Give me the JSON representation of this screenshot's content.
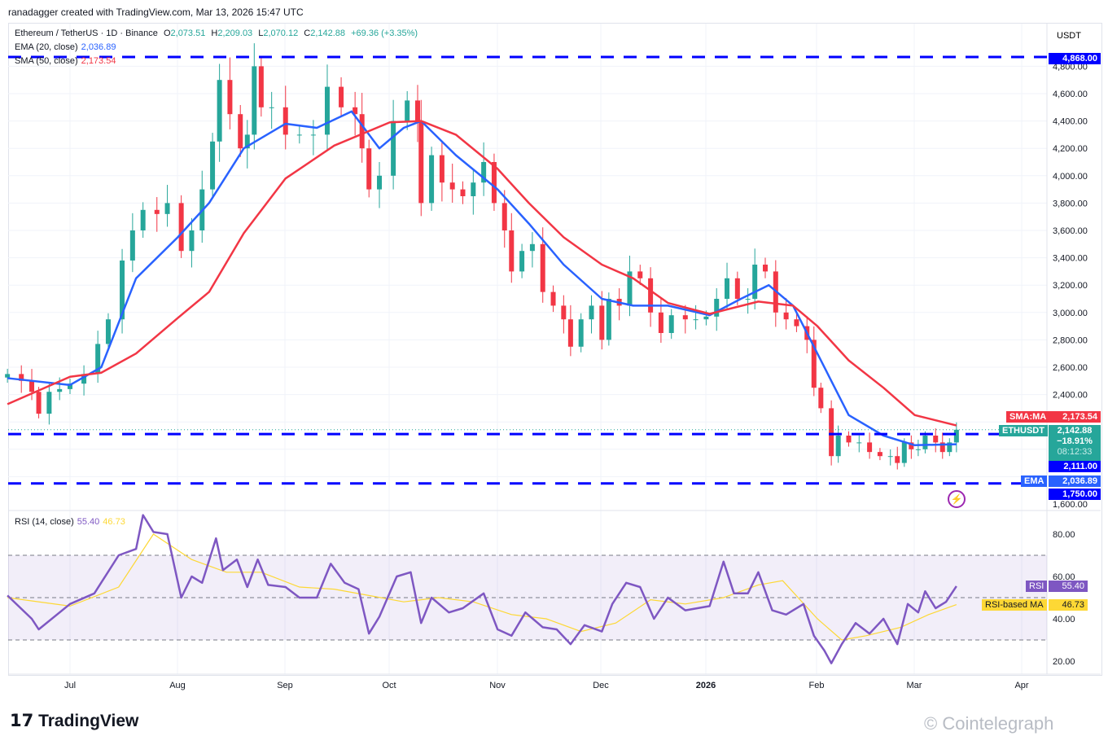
{
  "header": "ranadagger created with TradingView.com, Mar 13, 2026 15:47 UTC",
  "legend": {
    "symbol": "Ethereum / TetherUS · 1D · Binance",
    "o": "O",
    "o_val": "2,073.51",
    "h": "H",
    "h_val": "2,209.03",
    "l": "L",
    "l_val": "2,070.12",
    "c": "C",
    "c_val": "2,142.88",
    "change": "+69.36 (+3.35%)",
    "ema": "EMA (20, close)",
    "ema_val": "2,036.89",
    "sma": "SMA (50, close)",
    "sma_val": "2,173.54",
    "rsi": "RSI (14, close)",
    "rsi_val": "55.40",
    "rsi_ma_val": "46.73"
  },
  "currency": "USDT",
  "tags": {
    "sma_label": "SMA:MA",
    "sma_val": "2,173.54",
    "sym_label": "ETHUSDT",
    "price": "2,142.88",
    "pct": "−18.91%",
    "timer": "08:12:33",
    "lvl1": "2,111.00",
    "ema_label": "EMA",
    "ema_val": "2,036.89",
    "lvl2": "1,750.00",
    "lvl_top": "4,868.00",
    "rsi_label": "RSI",
    "rsi_val": "55.40",
    "rsi_ma_label": "RSI-based MA",
    "rsi_ma_val": "46.73"
  },
  "colors": {
    "up": "#26a69a",
    "down": "#f23645",
    "ema": "#2962ff",
    "sma": "#f23645",
    "level": "#0000ff",
    "rsi": "#7e57c2",
    "rsi_ma": "#fdd835"
  },
  "footer": {
    "brand": "TradingView",
    "watermark": "© Cointelegraph"
  },
  "chart_data": [
    {
      "type": "candlestick",
      "ylim": [
        1550,
        4950
      ],
      "price_ticks": [
        "4,800.00",
        "4,600.00",
        "4,400.00",
        "4,200.00",
        "4,000.00",
        "3,800.00",
        "3,600.00",
        "3,400.00",
        "3,200.00",
        "3,000.00",
        "2,800.00",
        "2,600.00",
        "2,400.00",
        "1,600.00"
      ],
      "x_ticks": [
        "Jul",
        "Aug",
        "Sep",
        "Oct",
        "Nov",
        "Dec",
        "2026",
        "Feb",
        "Mar",
        "Apr"
      ],
      "horizontal_levels": [
        4868,
        2111,
        1750
      ],
      "closes": [
        [
          "2025-06-13",
          2550
        ],
        [
          "2025-06-17",
          2500
        ],
        [
          "2025-06-20",
          2420
        ],
        [
          "2025-06-22",
          2260
        ],
        [
          "2025-06-25",
          2420
        ],
        [
          "2025-06-28",
          2440
        ],
        [
          "2025-07-01",
          2480
        ],
        [
          "2025-07-05",
          2550
        ],
        [
          "2025-07-09",
          2770
        ],
        [
          "2025-07-12",
          2950
        ],
        [
          "2025-07-16",
          3380
        ],
        [
          "2025-07-19",
          3600
        ],
        [
          "2025-07-22",
          3750
        ],
        [
          "2025-07-26",
          3720
        ],
        [
          "2025-07-29",
          3800
        ],
        [
          "2025-08-02",
          3450
        ],
        [
          "2025-08-05",
          3600
        ],
        [
          "2025-08-08",
          3900
        ],
        [
          "2025-08-11",
          4250
        ],
        [
          "2025-08-13",
          4700
        ],
        [
          "2025-08-16",
          4450
        ],
        [
          "2025-08-19",
          4200
        ],
        [
          "2025-08-21",
          4300
        ],
        [
          "2025-08-23",
          4800
        ],
        [
          "2025-08-25",
          4500
        ],
        [
          "2025-08-28",
          4500
        ],
        [
          "2025-09-01",
          4300
        ],
        [
          "2025-09-05",
          4300
        ],
        [
          "2025-09-09",
          4300
        ],
        [
          "2025-09-13",
          4650
        ],
        [
          "2025-09-17",
          4500
        ],
        [
          "2025-09-21",
          4450
        ],
        [
          "2025-09-23",
          4200
        ],
        [
          "2025-09-25",
          3900
        ],
        [
          "2025-09-28",
          4000
        ],
        [
          "2025-10-02",
          4400
        ],
        [
          "2025-10-06",
          4550
        ],
        [
          "2025-10-09",
          4400
        ],
        [
          "2025-10-10",
          3800
        ],
        [
          "2025-10-13",
          4150
        ],
        [
          "2025-10-16",
          3950
        ],
        [
          "2025-10-19",
          3900
        ],
        [
          "2025-10-22",
          3850
        ],
        [
          "2025-10-25",
          3950
        ],
        [
          "2025-10-28",
          4100
        ],
        [
          "2025-10-31",
          3800
        ],
        [
          "2025-11-03",
          3600
        ],
        [
          "2025-11-05",
          3300
        ],
        [
          "2025-11-08",
          3450
        ],
        [
          "2025-11-11",
          3500
        ],
        [
          "2025-11-14",
          3150
        ],
        [
          "2025-11-17",
          3050
        ],
        [
          "2025-11-20",
          2950
        ],
        [
          "2025-11-22",
          2750
        ],
        [
          "2025-11-25",
          2950
        ],
        [
          "2025-11-28",
          3050
        ],
        [
          "2025-12-01",
          2800
        ],
        [
          "2025-12-03",
          3100
        ],
        [
          "2025-12-06",
          3050
        ],
        [
          "2025-12-09",
          3300
        ],
        [
          "2025-12-12",
          3250
        ],
        [
          "2025-12-15",
          3000
        ],
        [
          "2025-12-18",
          2850
        ],
        [
          "2025-12-21",
          2980
        ],
        [
          "2025-12-25",
          2950
        ],
        [
          "2025-12-28",
          2950
        ],
        [
          "2025-12-31",
          2970
        ],
        [
          "2026-01-03",
          3100
        ],
        [
          "2026-01-06",
          3250
        ],
        [
          "2026-01-09",
          3100
        ],
        [
          "2026-01-12",
          3100
        ],
        [
          "2026-01-14",
          3350
        ],
        [
          "2026-01-17",
          3300
        ],
        [
          "2026-01-20",
          3000
        ],
        [
          "2026-01-23",
          2950
        ],
        [
          "2026-01-26",
          2900
        ],
        [
          "2026-01-29",
          2800
        ],
        [
          "2026-01-31",
          2450
        ],
        [
          "2026-02-02",
          2300
        ],
        [
          "2026-02-05",
          1950
        ],
        [
          "2026-02-07",
          2100
        ],
        [
          "2026-02-10",
          2050
        ],
        [
          "2026-02-13",
          2050
        ],
        [
          "2026-02-16",
          1980
        ],
        [
          "2026-02-19",
          1950
        ],
        [
          "2026-02-22",
          1950
        ],
        [
          "2026-02-24",
          1900
        ],
        [
          "2026-02-26",
          2050
        ],
        [
          "2026-02-28",
          2000
        ],
        [
          "2026-03-02",
          2000
        ],
        [
          "2026-03-04",
          2100
        ],
        [
          "2026-03-07",
          2050
        ],
        [
          "2026-03-09",
          1980
        ],
        [
          "2026-03-11",
          2050
        ],
        [
          "2026-03-13",
          2143
        ]
      ],
      "series": [
        {
          "name": "EMA (20, close)",
          "values": [
            [
              "2025-06-13",
              2520
            ],
            [
              "2025-07-01",
              2470
            ],
            [
              "2025-07-10",
              2600
            ],
            [
              "2025-07-20",
              3250
            ],
            [
              "2025-08-01",
              3550
            ],
            [
              "2025-08-10",
              3800
            ],
            [
              "2025-08-20",
              4200
            ],
            [
              "2025-09-01",
              4380
            ],
            [
              "2025-09-10",
              4350
            ],
            [
              "2025-09-20",
              4470
            ],
            [
              "2025-09-28",
              4200
            ],
            [
              "2025-10-05",
              4350
            ],
            [
              "2025-10-10",
              4400
            ],
            [
              "2025-10-20",
              4150
            ],
            [
              "2025-11-01",
              3900
            ],
            [
              "2025-11-10",
              3650
            ],
            [
              "2025-11-20",
              3350
            ],
            [
              "2025-12-01",
              3100
            ],
            [
              "2025-12-10",
              3050
            ],
            [
              "2025-12-20",
              3050
            ],
            [
              "2026-01-01",
              2980
            ],
            [
              "2026-01-10",
              3100
            ],
            [
              "2026-01-18",
              3200
            ],
            [
              "2026-01-25",
              3050
            ],
            [
              "2026-02-01",
              2700
            ],
            [
              "2026-02-10",
              2250
            ],
            [
              "2026-02-20",
              2100
            ],
            [
              "2026-03-01",
              2030
            ],
            [
              "2026-03-13",
              2037
            ]
          ]
        },
        {
          "name": "SMA (50, close)",
          "values": [
            [
              "2025-06-13",
              2330
            ],
            [
              "2025-07-01",
              2530
            ],
            [
              "2025-07-10",
              2560
            ],
            [
              "2025-07-20",
              2700
            ],
            [
              "2025-08-01",
              2960
            ],
            [
              "2025-08-10",
              3150
            ],
            [
              "2025-08-20",
              3580
            ],
            [
              "2025-09-01",
              3980
            ],
            [
              "2025-09-15",
              4220
            ],
            [
              "2025-10-01",
              4390
            ],
            [
              "2025-10-10",
              4400
            ],
            [
              "2025-10-20",
              4300
            ],
            [
              "2025-11-01",
              4050
            ],
            [
              "2025-11-10",
              3800
            ],
            [
              "2025-11-20",
              3550
            ],
            [
              "2025-12-01",
              3350
            ],
            [
              "2025-12-10",
              3250
            ],
            [
              "2025-12-20",
              3070
            ],
            [
              "2026-01-01",
              2990
            ],
            [
              "2026-01-15",
              3080
            ],
            [
              "2026-01-25",
              3050
            ],
            [
              "2026-02-01",
              2900
            ],
            [
              "2026-02-10",
              2650
            ],
            [
              "2026-02-20",
              2450
            ],
            [
              "2026-03-01",
              2250
            ],
            [
              "2026-03-13",
              2174
            ]
          ]
        }
      ]
    },
    {
      "type": "line",
      "ylim": [
        12,
        96
      ],
      "y_ticks": [
        "80.00",
        "60.00",
        "40.00",
        "20.00"
      ],
      "bands": [
        30,
        50,
        70
      ],
      "series": [
        {
          "name": "RSI",
          "values": [
            [
              "2025-06-13",
              51
            ],
            [
              "2025-06-20",
              40
            ],
            [
              "2025-06-22",
              35
            ],
            [
              "2025-07-01",
              47
            ],
            [
              "2025-07-08",
              52
            ],
            [
              "2025-07-15",
              70
            ],
            [
              "2025-07-20",
              73
            ],
            [
              "2025-07-22",
              89
            ],
            [
              "2025-07-25",
              81
            ],
            [
              "2025-07-29",
              80
            ],
            [
              "2025-08-02",
              50
            ],
            [
              "2025-08-05",
              60
            ],
            [
              "2025-08-08",
              57
            ],
            [
              "2025-08-12",
              78
            ],
            [
              "2025-08-14",
              63
            ],
            [
              "2025-08-18",
              68
            ],
            [
              "2025-08-21",
              55
            ],
            [
              "2025-08-24",
              68
            ],
            [
              "2025-08-27",
              56
            ],
            [
              "2025-09-01",
              55
            ],
            [
              "2025-09-05",
              50
            ],
            [
              "2025-09-10",
              50
            ],
            [
              "2025-09-14",
              66
            ],
            [
              "2025-09-18",
              57
            ],
            [
              "2025-09-22",
              54
            ],
            [
              "2025-09-25",
              33
            ],
            [
              "2025-09-28",
              41
            ],
            [
              "2025-10-03",
              60
            ],
            [
              "2025-10-07",
              62
            ],
            [
              "2025-10-10",
              38
            ],
            [
              "2025-10-13",
              50
            ],
            [
              "2025-10-18",
              43
            ],
            [
              "2025-10-22",
              45
            ],
            [
              "2025-10-28",
              52
            ],
            [
              "2025-11-01",
              35
            ],
            [
              "2025-11-05",
              32
            ],
            [
              "2025-11-09",
              43
            ],
            [
              "2025-11-14",
              36
            ],
            [
              "2025-11-18",
              35
            ],
            [
              "2025-11-22",
              28
            ],
            [
              "2025-11-26",
              37
            ],
            [
              "2025-12-01",
              34
            ],
            [
              "2025-12-04",
              47
            ],
            [
              "2025-12-08",
              57
            ],
            [
              "2025-12-12",
              55
            ],
            [
              "2025-12-16",
              40
            ],
            [
              "2025-12-20",
              50
            ],
            [
              "2025-12-25",
              44
            ],
            [
              "2026-01-01",
              46
            ],
            [
              "2026-01-05",
              67
            ],
            [
              "2026-01-08",
              52
            ],
            [
              "2026-01-12",
              52
            ],
            [
              "2026-01-15",
              62
            ],
            [
              "2026-01-19",
              44
            ],
            [
              "2026-01-23",
              42
            ],
            [
              "2026-01-28",
              47
            ],
            [
              "2026-01-31",
              32
            ],
            [
              "2026-02-03",
              25
            ],
            [
              "2026-02-05",
              19
            ],
            [
              "2026-02-08",
              28
            ],
            [
              "2026-02-12",
              38
            ],
            [
              "2026-02-16",
              33
            ],
            [
              "2026-02-20",
              40
            ],
            [
              "2026-02-24",
              28
            ],
            [
              "2026-02-27",
              47
            ],
            [
              "2026-03-02",
              43
            ],
            [
              "2026-03-04",
              53
            ],
            [
              "2026-03-07",
              45
            ],
            [
              "2026-03-10",
              48
            ],
            [
              "2026-03-13",
              55.4
            ]
          ]
        },
        {
          "name": "RSI-based MA",
          "values": [
            [
              "2025-06-13",
              50
            ],
            [
              "2025-07-01",
              46
            ],
            [
              "2025-07-15",
              55
            ],
            [
              "2025-07-25",
              80
            ],
            [
              "2025-08-05",
              68
            ],
            [
              "2025-08-15",
              62
            ],
            [
              "2025-08-25",
              62
            ],
            [
              "2025-09-05",
              55
            ],
            [
              "2025-09-15",
              54
            ],
            [
              "2025-09-25",
              51
            ],
            [
              "2025-10-05",
              48
            ],
            [
              "2025-10-15",
              50
            ],
            [
              "2025-10-25",
              48
            ],
            [
              "2025-11-05",
              42
            ],
            [
              "2025-11-15",
              40
            ],
            [
              "2025-11-25",
              34
            ],
            [
              "2025-12-05",
              38
            ],
            [
              "2025-12-15",
              49
            ],
            [
              "2025-12-25",
              47
            ],
            [
              "2026-01-05",
              50
            ],
            [
              "2026-01-15",
              56
            ],
            [
              "2026-01-22",
              58
            ],
            [
              "2026-02-01",
              40
            ],
            [
              "2026-02-08",
              30
            ],
            [
              "2026-02-15",
              32
            ],
            [
              "2026-02-25",
              36
            ],
            [
              "2026-03-05",
              42
            ],
            [
              "2026-03-13",
              46.73
            ]
          ]
        }
      ]
    }
  ]
}
